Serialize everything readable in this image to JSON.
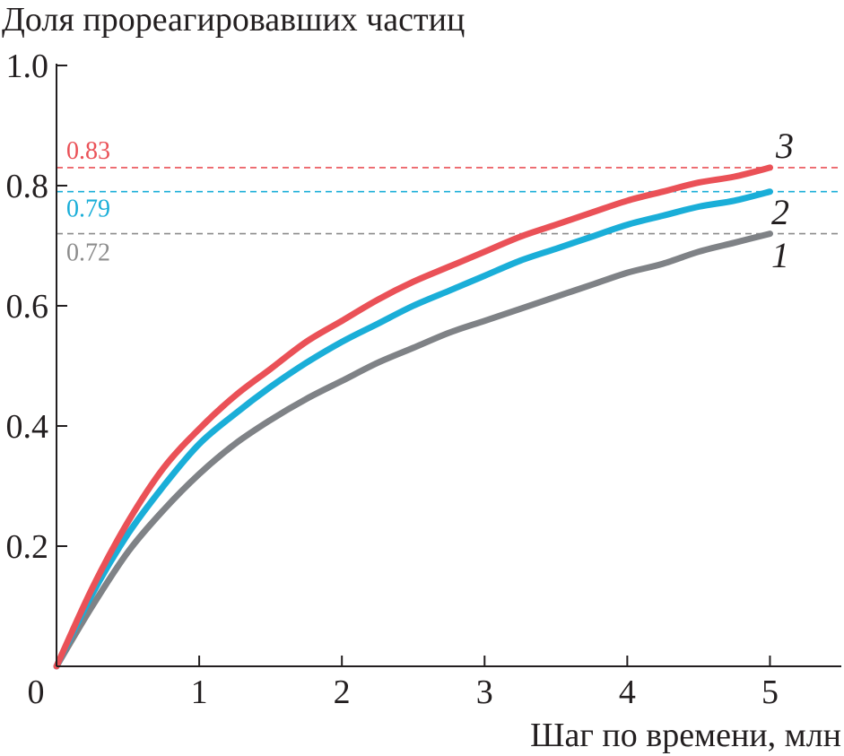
{
  "chart_data": {
    "type": "line",
    "title": "",
    "ylabel": "Доля прореагировавших частиц",
    "xlabel": "Шаг по времени, млн",
    "xlim": [
      0,
      5.5
    ],
    "ylim": [
      0,
      1.0
    ],
    "x_ticks": [
      0,
      1,
      2,
      3,
      4,
      5
    ],
    "x_tick_labels": [
      "0",
      "1",
      "2",
      "3",
      "4",
      "5"
    ],
    "y_ticks": [
      0.2,
      0.4,
      0.6,
      0.8,
      1.0
    ],
    "y_tick_labels": [
      "0.2",
      "0.4",
      "0.6",
      "0.8",
      "1.0"
    ],
    "grid": false,
    "x": [
      0,
      0.25,
      0.5,
      0.75,
      1.0,
      1.25,
      1.5,
      1.75,
      2.0,
      2.25,
      2.5,
      2.75,
      3.0,
      3.25,
      3.5,
      3.75,
      4.0,
      4.25,
      4.5,
      4.75,
      5.0
    ],
    "series": [
      {
        "name": "1",
        "color": "#7f8286",
        "values": [
          0.0,
          0.1,
          0.19,
          0.26,
          0.32,
          0.37,
          0.41,
          0.445,
          0.475,
          0.505,
          0.53,
          0.555,
          0.575,
          0.595,
          0.615,
          0.635,
          0.655,
          0.67,
          0.69,
          0.705,
          0.72
        ]
      },
      {
        "name": "2",
        "color": "#1aaed8",
        "values": [
          0.0,
          0.12,
          0.22,
          0.3,
          0.37,
          0.42,
          0.465,
          0.505,
          0.54,
          0.57,
          0.6,
          0.625,
          0.65,
          0.675,
          0.695,
          0.715,
          0.735,
          0.75,
          0.765,
          0.775,
          0.79
        ]
      },
      {
        "name": "3",
        "color": "#ea5157",
        "values": [
          0.0,
          0.13,
          0.24,
          0.33,
          0.395,
          0.45,
          0.495,
          0.54,
          0.575,
          0.61,
          0.64,
          0.665,
          0.69,
          0.715,
          0.735,
          0.755,
          0.775,
          0.79,
          0.805,
          0.815,
          0.83
        ]
      }
    ],
    "reference_lines": [
      {
        "y": 0.83,
        "label": "0.83",
        "color": "#ea5157"
      },
      {
        "y": 0.79,
        "label": "0.79",
        "color": "#1aaed8"
      },
      {
        "y": 0.72,
        "label": "0.72",
        "color": "#8c8c8c"
      }
    ],
    "curve_labels": [
      "3",
      "2",
      "1"
    ]
  }
}
